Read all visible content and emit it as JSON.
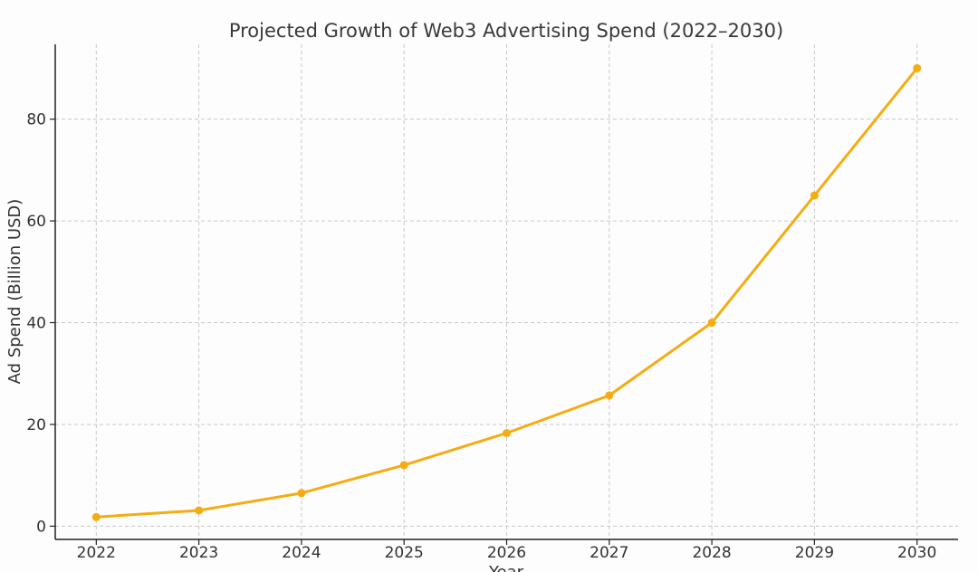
{
  "chart_data": {
    "type": "line",
    "title": "Projected Growth of Web3 Advertising Spend (2022–2030)",
    "xlabel": "Year",
    "ylabel": "Ad Spend (Billion USD)",
    "x": [
      2022,
      2023,
      2024,
      2025,
      2026,
      2027,
      2028,
      2029,
      2030
    ],
    "series": [
      {
        "values": [
          1.8,
          3.1,
          6.5,
          12.0,
          18.3,
          25.7,
          40.0,
          65.0,
          90.0
        ]
      }
    ],
    "xlim": [
      2021.6,
      2030.4
    ],
    "ylim": [
      -2.6,
      94.7
    ],
    "yticks": [
      0,
      20,
      40,
      60,
      80
    ],
    "grid": true,
    "legend": "none",
    "line_color": "#f5ac12"
  }
}
